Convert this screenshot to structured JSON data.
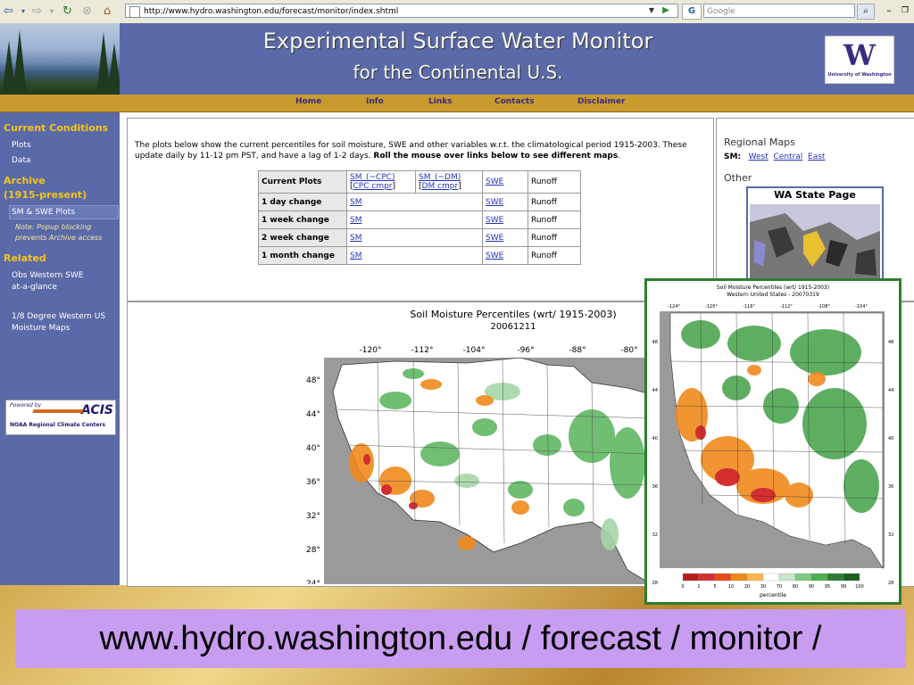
{
  "browser": {
    "url": "http://www.hydro.washington.edu/forecast/monitor/index.shtml",
    "search_placeholder": "Google",
    "search_engine_badge": "G"
  },
  "header": {
    "title": "Experimental Surface Water Monitor",
    "subtitle": "for the Continental U.S.",
    "logo_text": "University of Washington",
    "logo_letter": "W"
  },
  "nav": [
    "Home",
    "Info",
    "Links",
    "Contacts",
    "Disclaimer"
  ],
  "sidebar": {
    "current_heading": "Current Conditions",
    "current_links": [
      "Plots",
      "Data"
    ],
    "archive_heading_1": "Archive",
    "archive_heading_2": "(1915-present)",
    "archive_link": "SM & SWE Plots",
    "archive_note_1": "Note: Popup blocking",
    "archive_note_2": "prevents Archive access",
    "related_heading": "Related",
    "related_link_1a": "Obs Western SWE",
    "related_link_1b": "at-a-glance",
    "related_link_2a": "1/8 Degree Western US",
    "related_link_2b": "Moisture Maps",
    "acis_powered": "Powered by",
    "acis_name": "ACIS",
    "acis_caption": "NOAA Regional Climate Centers"
  },
  "intro": {
    "text_1": "The plots below show the current percentiles for soil moisture, SWE and other variables w.r.t. the climatological period 1915-2003. These update daily by 11-12 pm PST, and have a lag of 1-2 days.",
    "text_bold": "Roll the mouse over links below to see different maps",
    "text_end": "."
  },
  "table": {
    "header": {
      "label": "Current Plots",
      "sm_cpc": "SM_(~CPC)",
      "cpc_cmpr": "CPC cmpr",
      "sm_dm": "SM_(~DM)",
      "dm_cmpr": "DM cmpr",
      "swe": "SWE",
      "runoff": "Runoff"
    },
    "rows": [
      {
        "label": "1 day change",
        "sm": "SM",
        "swe": "SWE",
        "runoff": "Runoff"
      },
      {
        "label": "1 week change",
        "sm": "SM",
        "swe": "SWE",
        "runoff": "Runoff"
      },
      {
        "label": "2 week change",
        "sm": "SM",
        "swe": "SWE",
        "runoff": "Runoff"
      },
      {
        "label": "1 month change",
        "sm": "SM",
        "swe": "SWE",
        "runoff": "Runoff"
      }
    ]
  },
  "regional": {
    "heading": "Regional Maps",
    "sm_label": "SM:",
    "links": [
      "West",
      "Central",
      "East"
    ],
    "other_heading": "Other",
    "wa_title": "WA State Page"
  },
  "main_map": {
    "title": "Soil Moisture Percentiles (wrt/ 1915-2003)",
    "date": "20061211",
    "lon_ticks": [
      "-120°",
      "-112°",
      "-104°",
      "-96°",
      "-88°",
      "-80°"
    ],
    "lat_ticks": [
      "48°",
      "44°",
      "40°",
      "36°",
      "32°",
      "28°",
      "24°"
    ]
  },
  "popup_map": {
    "title": "Soil Moisture Percentiles (wrt/ 1915-2003)",
    "subtitle": "Western United States - 20070319",
    "lon_ticks": [
      "-124°",
      "-120°",
      "-116°",
      "-112°",
      "-108°",
      "-104°"
    ],
    "lat_ticks": [
      "48",
      "44",
      "40",
      "36",
      "32",
      "28"
    ],
    "legend_values": [
      "0",
      "1",
      "5",
      "10",
      "20",
      "30",
      "70",
      "80",
      "90",
      "95",
      "99",
      "100"
    ],
    "legend_label": "percentile"
  },
  "banner": {
    "text": "www.hydro.washington.edu / forecast / monitor /"
  }
}
